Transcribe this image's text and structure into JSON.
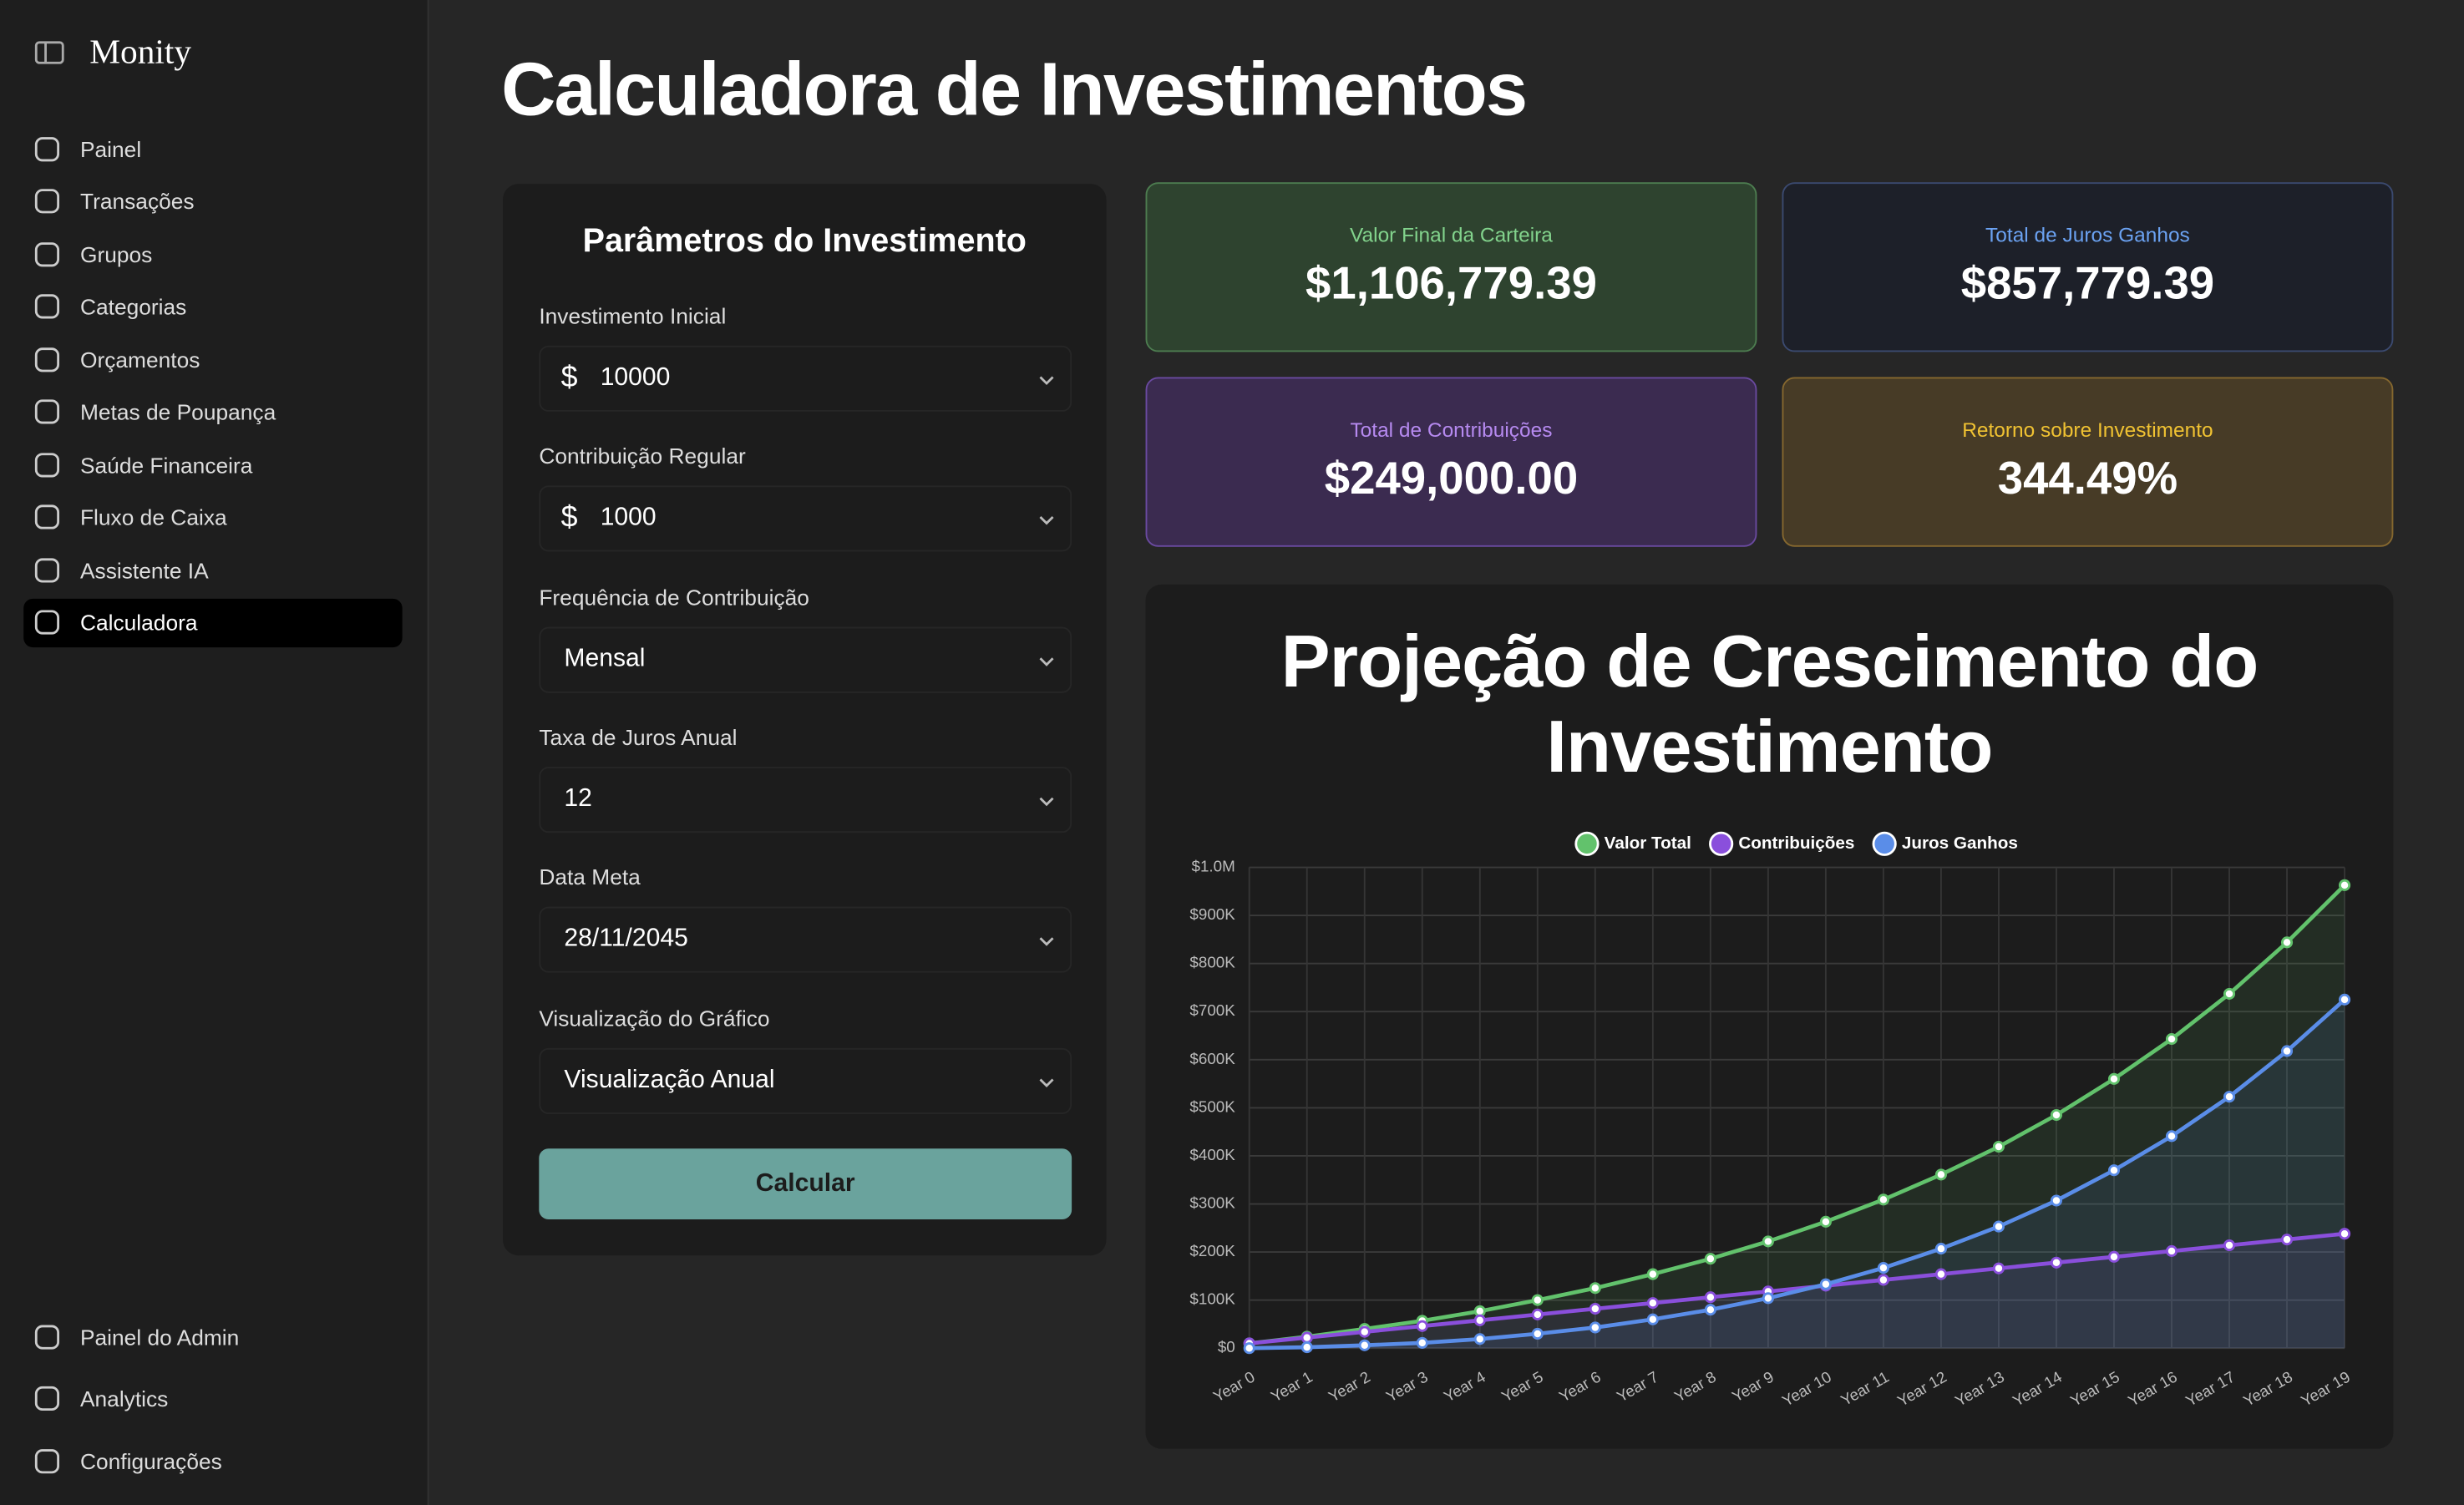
{
  "sidebar": {
    "brand": "Monity",
    "nav": [
      "Painel",
      "Transações",
      "Grupos",
      "Categorias",
      "Orçamentos",
      "Metas de Poupança",
      "Saúde Financeira",
      "Fluxo de Caixa",
      "Assistente IA",
      "Calculadora"
    ],
    "footer_nav": [
      "Painel do Admin",
      "Analytics",
      "Configurações"
    ]
  },
  "page_title": "Calculadora de Investimentos",
  "form": {
    "title": "Parâmetros do Investimento",
    "fields": [
      {
        "label": "Investimento Inicial",
        "prefix": "$",
        "value": "10000"
      },
      {
        "label": "Contribuição Regular",
        "prefix": "$",
        "value": "1000"
      },
      {
        "label": "Frequência de Contribuição",
        "value": "Mensal"
      },
      {
        "label": "Taxa de Juros Anual",
        "value": "12"
      },
      {
        "label": "Data Meta",
        "value": "28/11/2045"
      },
      {
        "label": "Visualização do Gráfico",
        "value": "Visualização Anual"
      }
    ],
    "button": "Calcular"
  },
  "stats": [
    {
      "label": "Valor Final da Carteira",
      "value": "$1,106,779.39"
    },
    {
      "label": "Total de Juros Ganhos",
      "value": "$857,779.39"
    },
    {
      "label": "Total de Contribuições",
      "value": "$249,000.00"
    },
    {
      "label": "Retorno sobre Investimento",
      "value": "344.49%"
    }
  ],
  "chart_data": {
    "type": "line",
    "title": "Projeção de Crescimento do Investimento",
    "categories": [
      "Year 0",
      "Year 1",
      "Year 2",
      "Year 3",
      "Year 4",
      "Year 5",
      "Year 6",
      "Year 7",
      "Year 8",
      "Year 9",
      "Year 10",
      "Year 11",
      "Year 12",
      "Year 13",
      "Year 14",
      "Year 15",
      "Year 16",
      "Year 17",
      "Year 18",
      "Year 19"
    ],
    "series": [
      {
        "name": "Valor Total",
        "color": "#62c26c",
        "values": [
          10000,
          24000,
          40000,
          57000,
          77000,
          100000,
          125000,
          154000,
          186000,
          222000,
          263000,
          309000,
          361000,
          419000,
          485000,
          560000,
          643000,
          737000,
          844000,
          963000
        ]
      },
      {
        "name": "Contribuições",
        "color": "#8a4fdc",
        "values": [
          10000,
          22000,
          34000,
          46000,
          58000,
          70000,
          82000,
          94000,
          106000,
          118000,
          130000,
          142000,
          154000,
          166000,
          178000,
          190000,
          202000,
          214000,
          226000,
          238000
        ]
      },
      {
        "name": "Juros Ganhos",
        "color": "#5a8de8",
        "values": [
          0,
          2000,
          6000,
          11000,
          19000,
          30000,
          43000,
          60000,
          80000,
          104000,
          133000,
          167000,
          207000,
          253000,
          307000,
          370000,
          441000,
          523000,
          618000,
          725000
        ]
      }
    ],
    "ylim": [
      0,
      1000000
    ],
    "yticks": [
      {
        "value": 0,
        "label": "$0"
      },
      {
        "value": 100000,
        "label": "$100K"
      },
      {
        "value": 200000,
        "label": "$200K"
      },
      {
        "value": 300000,
        "label": "$300K"
      },
      {
        "value": 400000,
        "label": "$400K"
      },
      {
        "value": 500000,
        "label": "$500K"
      },
      {
        "value": 600000,
        "label": "$600K"
      },
      {
        "value": 700000,
        "label": "$700K"
      },
      {
        "value": 800000,
        "label": "$800K"
      },
      {
        "value": 900000,
        "label": "$900K"
      },
      {
        "value": 1000000,
        "label": "$1.0M"
      }
    ],
    "grid": true,
    "legend": "top"
  }
}
